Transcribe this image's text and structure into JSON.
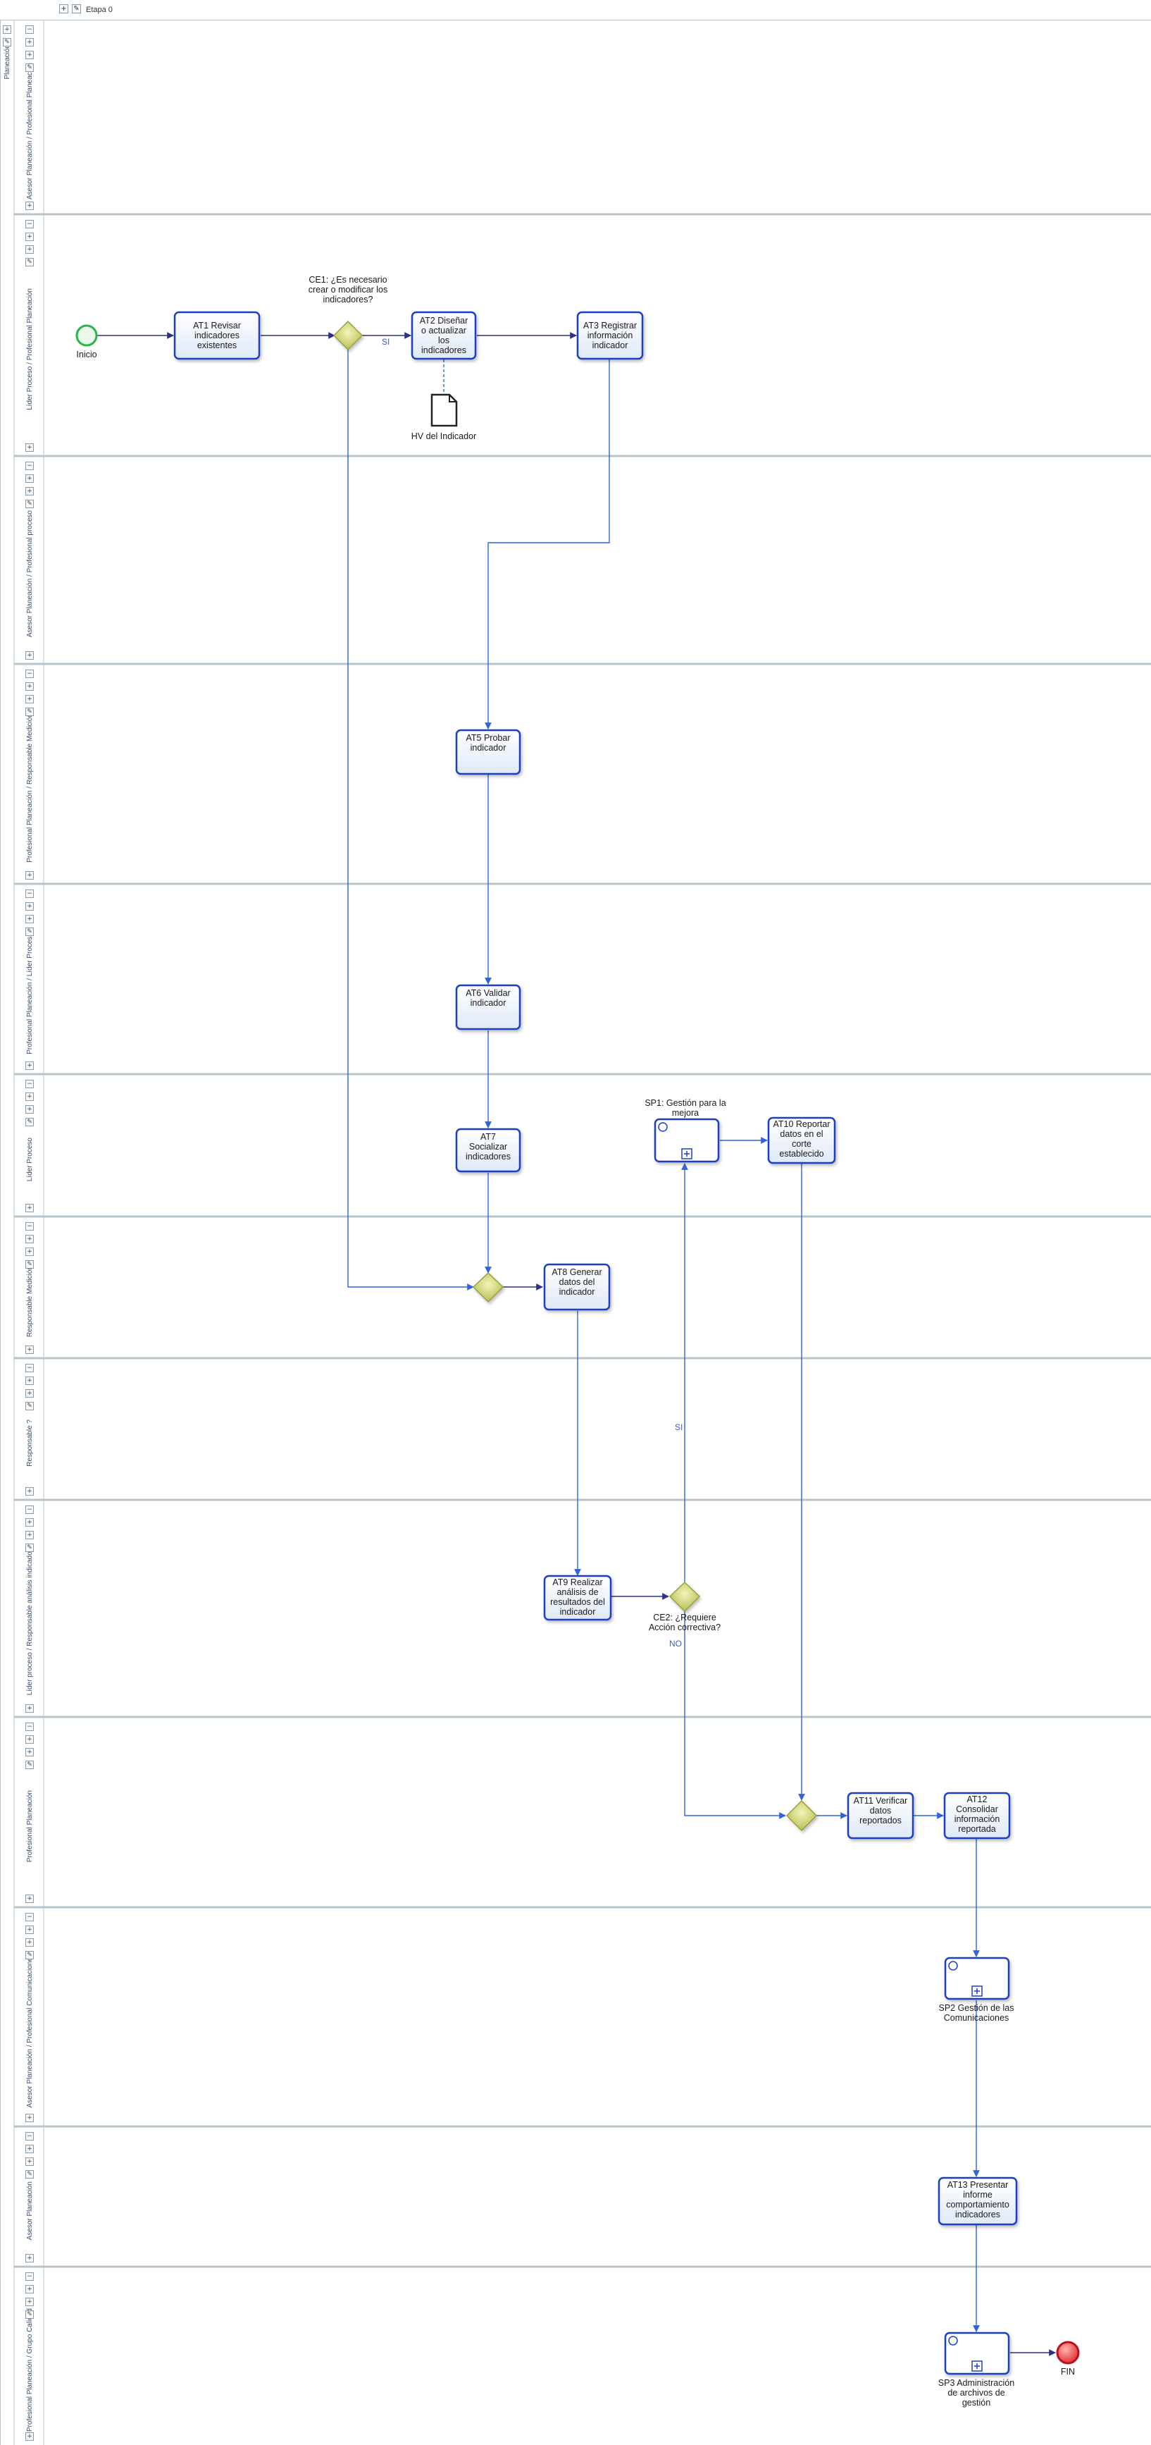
{
  "toolbar": {
    "stage_label": "Etapa 0",
    "collapse_symbol": "+"
  },
  "pool": {
    "name": "Planeación"
  },
  "lanes": [
    "Asesor Planeación / Profesional Planeación",
    "Líder Proceso / Profesional Planeación",
    "Asesor Planeación / Profesional proceso",
    "Profesional Planeación / Responsable Medición",
    "Profesional Planeación / Líder Proceso",
    "Líder Proceso",
    "Responsable Medición",
    "Responsable ?",
    "Líder proceso / Responsable análisis indicador",
    "Profesional Planeación",
    "Asesor Planeación / Profesional Comunicaciones",
    "Asesor Planeación",
    "Profesional Planeación / Grupo Calidad"
  ],
  "events": {
    "start": "Inicio",
    "end": "FIN"
  },
  "tasks": {
    "at1": "AT1 Revisar indicadores existentes",
    "at2": "AT2 Diseñar o actualizar los indicadores",
    "at3": "AT3 Registrar información indicador",
    "at5": "AT5 Probar indicador",
    "at6": "AT6 Validar indicador",
    "at7": "AT7 Socializar indicadores",
    "at8": "AT8 Generar datos del indicador",
    "at9": "AT9 Realizar análisis de resultados del indicador",
    "at10": "AT10 Reportar datos en el corte establecido",
    "at11": "AT11 Verificar datos reportados",
    "at12": "AT12 Consolidar información reportada",
    "at13": "AT13 Presentar informe comportamiento indicadores"
  },
  "subprocesses": {
    "sp1": "SP1: Gestión para la mejora",
    "sp2": "SP2 Gestión de las Comunicaciones",
    "sp3": "SP3 Administración de archivos de gestión"
  },
  "gateways": {
    "ce1": "CE1: ¿Es necesario crear o modificar los indicadores?",
    "ce2": "CE2: ¿Requiere Acción correctiva?"
  },
  "flow_labels": {
    "ce1_yes": "SI",
    "ce2_yes": "SI",
    "ce2_no": "NO"
  },
  "artifacts": {
    "doc": "HV del Indicador"
  },
  "colors": {
    "task_border": "#1f3fc4",
    "task_fill": "#e9f0fb",
    "flow": "#2f63e0",
    "gateway": "#c7cc6a",
    "start": "#2db34a",
    "end": "#d81e2a",
    "lane_border": "#b8c4cc"
  }
}
